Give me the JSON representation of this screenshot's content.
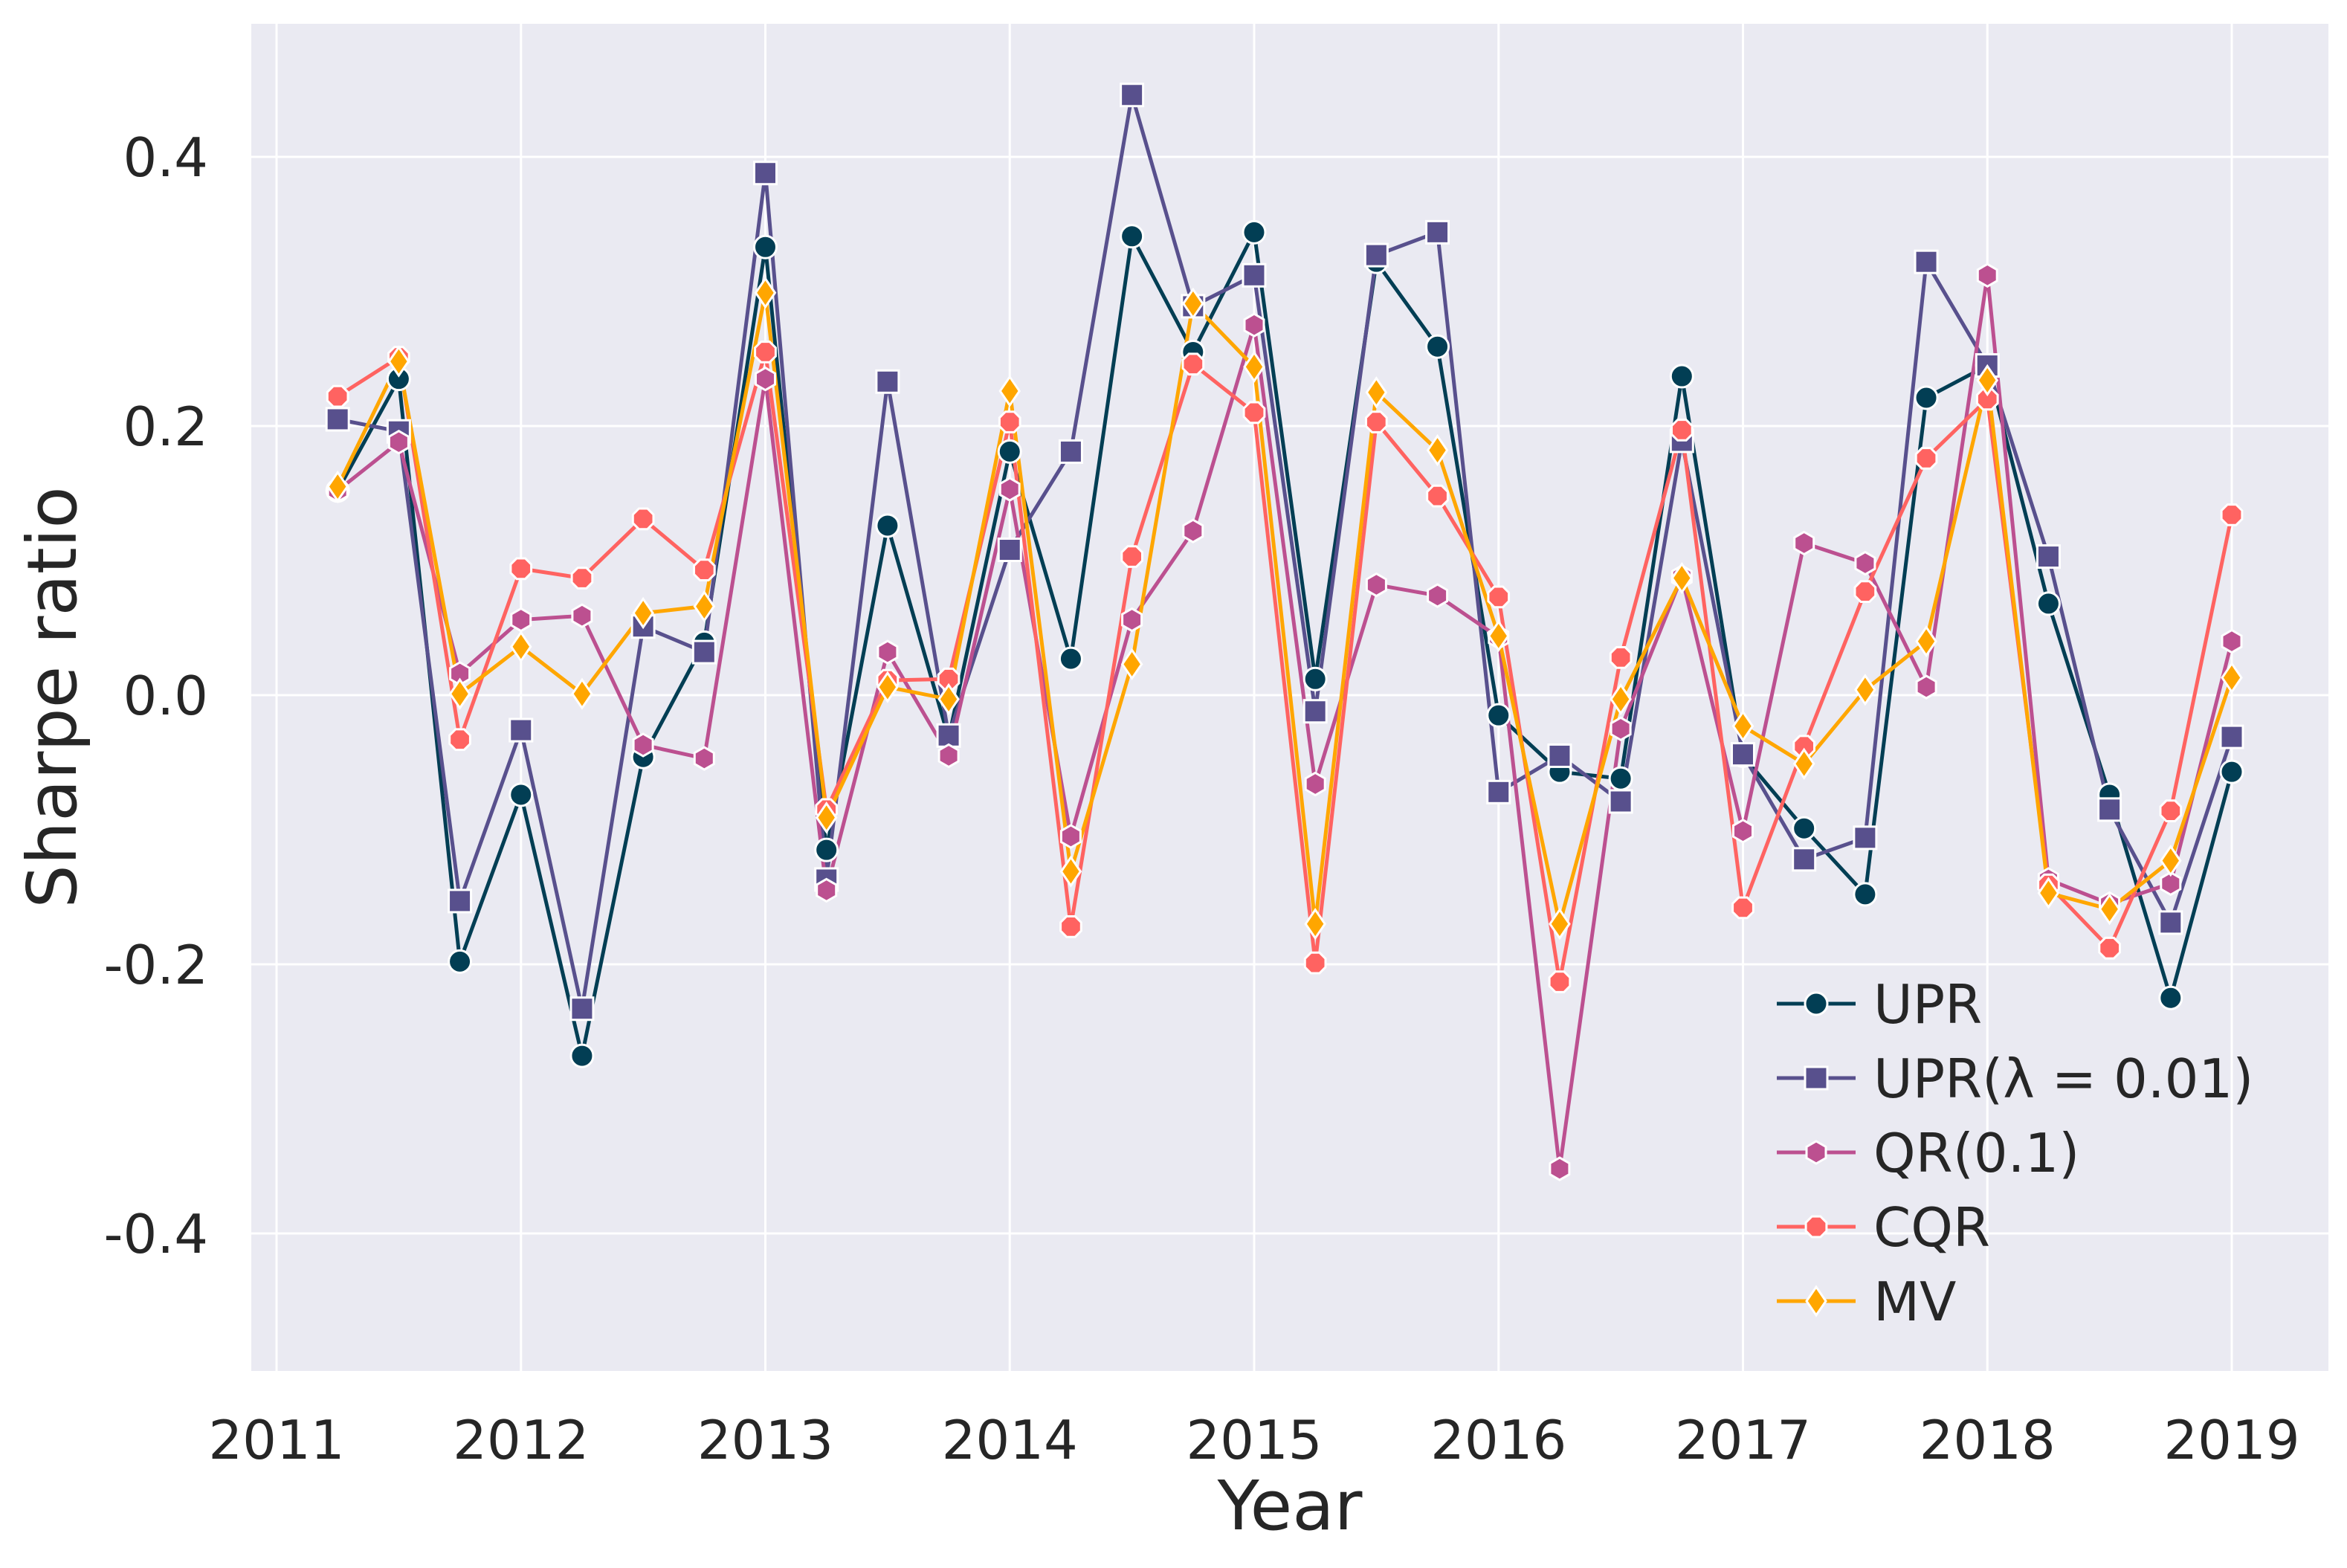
{
  "chart_data": {
    "type": "line",
    "title": "",
    "xlabel": "Year",
    "ylabel": "Sharpe ratio",
    "xlim": [
      2010.9,
      2019.25
    ],
    "ylim": [
      -0.5,
      0.5
    ],
    "xticks": [
      2011,
      2012,
      2013,
      2014,
      2015,
      2016,
      2017,
      2018,
      2019
    ],
    "xtick_labels": [
      "2011",
      "2012",
      "2013",
      "2014",
      "2015",
      "2016",
      "2017",
      "2018",
      "2019"
    ],
    "yticks": [
      -0.4,
      -0.2,
      0.0,
      0.2,
      0.4
    ],
    "ytick_labels": [
      "-0.4",
      "-0.2",
      "0.0",
      "0.2",
      "0.4"
    ],
    "grid": true,
    "legend_position": "lower-right",
    "x": [
      2011.25,
      2011.5,
      2011.75,
      2012.0,
      2012.25,
      2012.5,
      2012.75,
      2013.0,
      2013.25,
      2013.5,
      2013.75,
      2014.0,
      2014.25,
      2014.5,
      2014.75,
      2015.0,
      2015.25,
      2015.5,
      2015.75,
      2016.0,
      2016.25,
      2016.5,
      2016.75,
      2017.0,
      2017.25,
      2017.5,
      2017.75,
      2018.0,
      2018.25,
      2018.5,
      2018.75,
      2019.0
    ],
    "series": [
      {
        "name": "UPR",
        "color": "#023e54",
        "marker": "circle",
        "values": [
          0.152,
          0.235,
          -0.198,
          -0.074,
          -0.268,
          -0.046,
          0.039,
          0.333,
          -0.115,
          0.126,
          -0.032,
          0.181,
          0.027,
          0.341,
          0.255,
          0.344,
          0.012,
          0.322,
          0.259,
          -0.015,
          -0.057,
          -0.062,
          0.237,
          -0.045,
          -0.099,
          -0.148,
          0.221,
          0.245,
          0.068,
          -0.074,
          -0.225,
          -0.057
        ]
      },
      {
        "name": "UPR(λ = 0.01)",
        "color": "#58508d",
        "marker": "square",
        "values": [
          0.205,
          0.196,
          -0.153,
          -0.026,
          -0.233,
          0.051,
          0.032,
          0.388,
          -0.137,
          0.233,
          -0.03,
          0.108,
          0.181,
          0.446,
          0.289,
          0.312,
          -0.012,
          0.327,
          0.344,
          -0.072,
          -0.045,
          -0.079,
          0.189,
          -0.044,
          -0.122,
          -0.106,
          0.322,
          0.245,
          0.103,
          -0.085,
          -0.169,
          -0.031
        ]
      },
      {
        "name": "QR(0.1)",
        "color": "#bc5090",
        "marker": "hexagon",
        "values": [
          0.152,
          0.188,
          0.016,
          0.056,
          0.059,
          -0.037,
          -0.047,
          0.235,
          -0.145,
          0.032,
          -0.045,
          0.153,
          -0.105,
          0.056,
          0.122,
          0.275,
          -0.066,
          0.082,
          0.074,
          0.043,
          -0.352,
          -0.025,
          0.088,
          -0.101,
          0.113,
          0.098,
          0.006,
          0.312,
          -0.137,
          -0.155,
          -0.14,
          0.04
        ]
      },
      {
        "name": "CQR",
        "color": "#ff6361",
        "marker": "octagon",
        "values": [
          0.222,
          0.251,
          -0.033,
          0.094,
          0.087,
          0.131,
          0.093,
          0.255,
          -0.085,
          0.011,
          0.012,
          0.203,
          -0.172,
          0.103,
          0.246,
          0.21,
          -0.199,
          0.203,
          0.148,
          0.073,
          -0.213,
          0.028,
          0.197,
          -0.158,
          -0.038,
          0.077,
          0.176,
          0.22,
          -0.141,
          -0.188,
          -0.086,
          0.134
        ]
      },
      {
        "name": "MV",
        "color": "#ffa600",
        "marker": "diamond",
        "values": [
          0.155,
          0.248,
          0.001,
          0.036,
          0.001,
          0.061,
          0.066,
          0.299,
          -0.091,
          0.006,
          -0.003,
          0.226,
          -0.131,
          0.023,
          0.291,
          0.244,
          -0.17,
          0.225,
          0.182,
          0.044,
          -0.17,
          -0.003,
          0.087,
          -0.023,
          -0.051,
          0.004,
          0.04,
          0.234,
          -0.147,
          -0.159,
          -0.123,
          0.013
        ]
      }
    ]
  }
}
